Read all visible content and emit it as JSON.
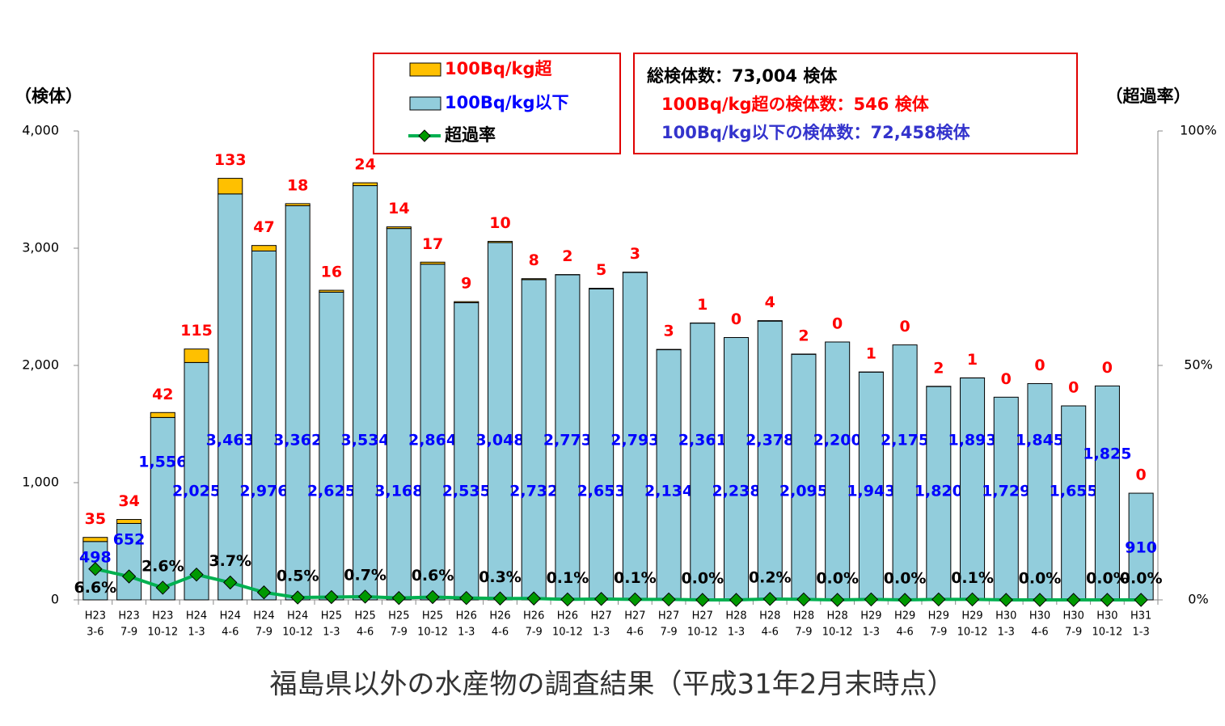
{
  "chart_data": {
    "type": "stacked-bar-line",
    "title": "福島県以外の水産物の調査結果（平成31年2月末時点）",
    "y_label": "（検体）",
    "y2_label": "（超過率）",
    "info_box": [
      "総検体数：73,004 検体",
      "100Bq/kg超の検体数：546 検体",
      "100Bq/kg以下の検体数：72,458検体"
    ],
    "categories": [
      [
        "H23",
        "3-6"
      ],
      [
        "H23",
        "7-9"
      ],
      [
        "H23",
        "10-12"
      ],
      [
        "H24",
        "1-3"
      ],
      [
        "H24",
        "4-6"
      ],
      [
        "H24",
        "7-9"
      ],
      [
        "H24",
        "10-12"
      ],
      [
        "H25",
        "1-3"
      ],
      [
        "H25",
        "4-6"
      ],
      [
        "H25",
        "7-9"
      ],
      [
        "H25",
        "10-12"
      ],
      [
        "H26",
        "1-3"
      ],
      [
        "H26",
        "4-6"
      ],
      [
        "H26",
        "7-9"
      ],
      [
        "H26",
        "10-12"
      ],
      [
        "H27",
        "1-3"
      ],
      [
        "H27",
        "4-6"
      ],
      [
        "H27",
        "7-9"
      ],
      [
        "H27",
        "10-12"
      ],
      [
        "H28",
        "1-3"
      ],
      [
        "H28",
        "4-6"
      ],
      [
        "H28",
        "7-9"
      ],
      [
        "H28",
        "10-12"
      ],
      [
        "H29",
        "1-3"
      ],
      [
        "H29",
        "4-6"
      ],
      [
        "H29",
        "7-9"
      ],
      [
        "H29",
        "10-12"
      ],
      [
        "H30",
        "1-3"
      ],
      [
        "H30",
        "4-6"
      ],
      [
        "H30",
        "7-9"
      ],
      [
        "H30",
        "10-12"
      ],
      [
        "H31",
        "1-3"
      ]
    ],
    "series": [
      {
        "name": "100Bq/kg以下",
        "color": "#92CDDC",
        "label_color": "#0000FF",
        "values": [
          498,
          652,
          1556,
          2025,
          3463,
          2976,
          3362,
          2625,
          3534,
          3168,
          2864,
          2535,
          3048,
          2732,
          2773,
          2653,
          2793,
          2134,
          2361,
          2238,
          2378,
          2095,
          2200,
          1943,
          2175,
          1820,
          1893,
          1729,
          1845,
          1655,
          1825,
          910
        ],
        "value_labels": [
          "498",
          "652",
          "1,556",
          "2,025",
          "3,463",
          "2,976",
          "3,362",
          "2,625",
          "3,534",
          "3,168",
          "2,864",
          "2,535",
          "3,048",
          "2,732",
          "2,773",
          "2,653",
          "2,793",
          "2,134",
          "2,361",
          "2,238",
          "2,378",
          "2,095",
          "2,200",
          "1,943",
          "2,175",
          "1,820",
          "1,893",
          "1,729",
          "1,845",
          "1,655",
          "1,825",
          "910"
        ]
      },
      {
        "name": "100Bq/kg超",
        "color": "#FFC000",
        "label_color": "#FF0000",
        "values": [
          35,
          34,
          42,
          115,
          133,
          47,
          18,
          16,
          24,
          14,
          17,
          9,
          10,
          8,
          2,
          5,
          3,
          3,
          1,
          0,
          4,
          2,
          0,
          1,
          0,
          2,
          1,
          0,
          0,
          0,
          0,
          0
        ]
      },
      {
        "name": "超過率",
        "color": "#00B050",
        "marker_color": "#009900",
        "axis": "y2",
        "label_color": "#000000",
        "values": [
          6.6,
          5.0,
          2.6,
          5.4,
          3.7,
          1.6,
          0.5,
          0.6,
          0.7,
          0.4,
          0.6,
          0.4,
          0.3,
          0.3,
          0.1,
          0.2,
          0.1,
          0.1,
          0.0,
          0.0,
          0.2,
          0.1,
          0.0,
          0.1,
          0.0,
          0.1,
          0.1,
          0.0,
          0.0,
          0.0,
          0.0,
          0.0
        ],
        "value_labels": [
          "6.6%",
          null,
          "2.6%",
          null,
          "3.7%",
          null,
          "0.5%",
          null,
          "0.7%",
          null,
          "0.6%",
          null,
          "0.3%",
          null,
          "0.1%",
          null,
          "0.1%",
          null,
          "0.0%",
          null,
          "0.2%",
          null,
          "0.0%",
          null,
          "0.0%",
          null,
          "0.1%",
          null,
          "0.0%",
          null,
          "0.0%",
          "0.0%"
        ]
      }
    ],
    "ylim": [
      0,
      4000
    ],
    "yticks": [
      0,
      {
        "value": 1000,
        "label": "1,000"
      },
      {
        "value": 2000,
        "label": "2,000"
      },
      {
        "value": 3000,
        "label": "3,000"
      },
      {
        "value": 4000,
        "label": "4,000"
      }
    ],
    "y2lim": [
      0,
      100
    ],
    "y2ticks": [
      {
        "value": 0,
        "label": "0%"
      },
      {
        "value": 50,
        "label": "50%"
      },
      {
        "value": 100,
        "label": "100%"
      }
    ]
  }
}
